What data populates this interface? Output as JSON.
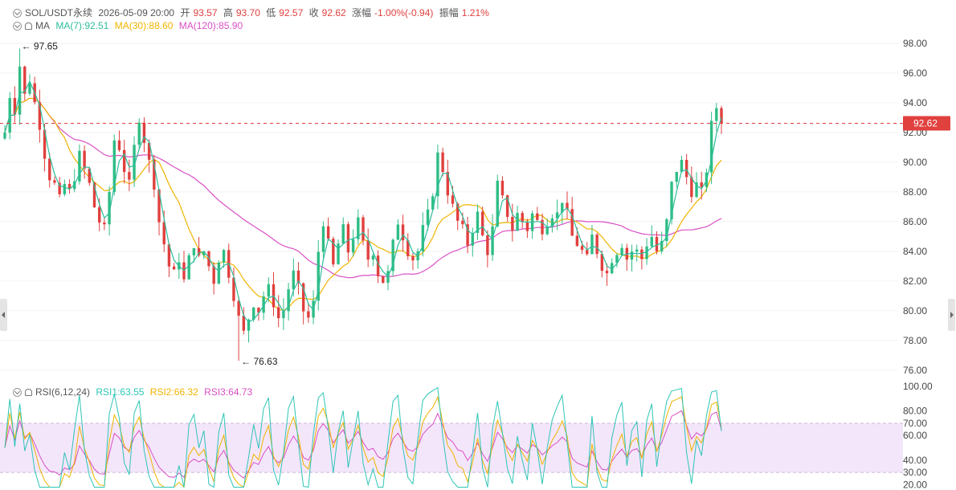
{
  "header": {
    "symbol": "SOL/USDT永续",
    "datetime": "2026-05-09 20:00",
    "open_label": "开",
    "open": "93.57",
    "high_label": "高",
    "high": "93.70",
    "low_label": "低",
    "low": "92.57",
    "close_label": "收",
    "close": "92.62",
    "change_label": "涨幅",
    "change": "-1.00%(-0.94)",
    "amplitude_label": "振幅",
    "amplitude": "1.21%"
  },
  "ma_legend": {
    "name": "MA",
    "ma7": "MA(7):92.51",
    "ma30": "MA(30):88.60",
    "ma120": "MA(120):85.90"
  },
  "rsi_legend": {
    "name": "RSI(6,12,24)",
    "rsi1": "RSI1:63.55",
    "rsi2": "RSI2:66.32",
    "rsi3": "RSI3:64.73"
  },
  "colors": {
    "up": "#2ebd85",
    "down": "#e0403e",
    "ma7": "#2ebd9c",
    "ma30": "#f0b400",
    "ma120": "#d94fc4",
    "rsi1": "#2ec5b6",
    "rsi2": "#f0b400",
    "rsi3": "#d94fc4",
    "rsi_band": "#f3e6fb",
    "axis_text": "#444444",
    "grid": "#f2f2f2"
  },
  "chart_data": [
    {
      "type": "candlestick",
      "title": "SOL/USDT永续",
      "interval_hint": "hourly",
      "ylim": [
        75.5,
        99.3
      ],
      "y_ticks": [
        "98.00",
        "96.00",
        "94.00",
        "92.00",
        "90.00",
        "88.00",
        "86.00",
        "84.00",
        "82.00",
        "80.00",
        "78.00",
        "76.00"
      ],
      "last_price": "92.62",
      "high_annotation": "97.65",
      "low_annotation": "76.63",
      "price_path": [
        92.0,
        94.5,
        93.5,
        96.5,
        94.5,
        95.5,
        94.0,
        92.5,
        90.5,
        89.0,
        88.5,
        87.5,
        88.5,
        88.0,
        89.0,
        90.5,
        89.5,
        88.5,
        87.0,
        86.0,
        85.5,
        88.0,
        91.5,
        91.0,
        89.5,
        88.5,
        91.0,
        93.0,
        91.5,
        90.0,
        88.5,
        86.0,
        84.5,
        83.0,
        82.5,
        83.5,
        82.0,
        83.5,
        84.5,
        83.5,
        84.0,
        83.0,
        82.0,
        83.5,
        84.0,
        82.5,
        81.0,
        79.5,
        78.5,
        79.5,
        80.5,
        80.0,
        81.0,
        81.5,
        80.5,
        79.5,
        80.0,
        81.5,
        82.5,
        81.5,
        80.0,
        79.5,
        80.5,
        84.0,
        86.0,
        84.5,
        83.0,
        84.5,
        85.5,
        84.0,
        85.0,
        86.0,
        84.5,
        83.5,
        84.0,
        82.5,
        82.0,
        82.5,
        84.5,
        86.0,
        85.0,
        84.0,
        83.5,
        84.0,
        85.5,
        86.5,
        88.0,
        90.5,
        89.5,
        88.0,
        87.0,
        86.0,
        85.5,
        84.5,
        85.5,
        86.5,
        85.0,
        84.0,
        85.5,
        88.5,
        87.5,
        86.5,
        85.5,
        86.5,
        86.0,
        85.5,
        86.5,
        86.0,
        85.5,
        86.0,
        86.5,
        86.5,
        87.5,
        86.5,
        85.0,
        84.5,
        84.0,
        83.5,
        85.0,
        84.0,
        83.0,
        82.5,
        83.5,
        84.0,
        84.5,
        83.5,
        84.0,
        84.0,
        83.5,
        84.5,
        85.0,
        84.0,
        84.5,
        86.0,
        88.5,
        89.5,
        90.0,
        89.0,
        88.0,
        88.5,
        88.0,
        89.5,
        92.5,
        93.7,
        92.62
      ],
      "low_point": {
        "x_index": 47,
        "value": 76.63
      },
      "high_point": {
        "x_index": 3,
        "value": 97.65
      },
      "series": [
        {
          "name": "MA(7)",
          "last": 92.51
        },
        {
          "name": "MA(30)",
          "last": 88.6
        },
        {
          "name": "MA(120)",
          "last": 85.9
        }
      ]
    },
    {
      "type": "line",
      "title": "RSI(6,12,24)",
      "ylim": [
        17,
        102
      ],
      "y_ticks": [
        "100.00",
        "80.00",
        "70.00",
        "60.00",
        "40.00",
        "30.00",
        "20.00"
      ],
      "band": [
        30,
        70
      ],
      "series": [
        {
          "name": "RSI1",
          "last": 63.55
        },
        {
          "name": "RSI2",
          "last": 66.32
        },
        {
          "name": "RSI3",
          "last": 64.73
        }
      ]
    }
  ]
}
